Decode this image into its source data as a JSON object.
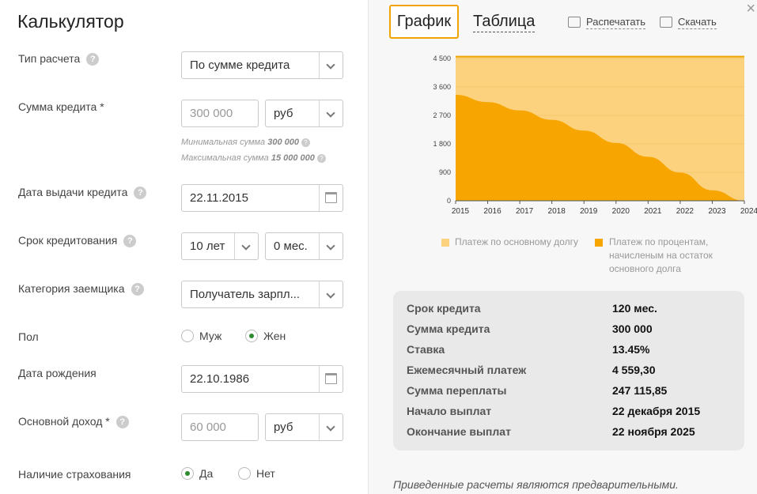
{
  "left": {
    "title": "Калькулятор",
    "calc_type": {
      "label": "Тип расчета",
      "value": "По сумме кредита"
    },
    "loan_amount": {
      "label": "Сумма кредита *",
      "placeholder": "300 000",
      "currency": "руб",
      "min_hint_prefix": "Минимальная сумма",
      "min_value": "300 000",
      "max_hint_prefix": "Максимальная сумма",
      "max_value": "15 000 000"
    },
    "issue_date": {
      "label": "Дата выдачи кредита",
      "value": "22.11.2015"
    },
    "term": {
      "label": "Срок кредитования",
      "years": "10 лет",
      "months": "0 мес."
    },
    "borrower_category": {
      "label": "Категория заемщика",
      "value": "Получатель зарпл..."
    },
    "gender": {
      "label": "Пол",
      "male": "Муж",
      "female": "Жен",
      "selected": "female"
    },
    "birth_date": {
      "label": "Дата рождения",
      "value": "22.10.1986"
    },
    "income": {
      "label": "Основной доход *",
      "placeholder": "60 000",
      "currency": "руб"
    },
    "insurance": {
      "label": "Наличие страхования",
      "yes": "Да",
      "no": "Нет",
      "selected": "yes"
    }
  },
  "right": {
    "tabs": [
      "График",
      "Таблица"
    ],
    "print_label": "Распечатать",
    "download_label": "Скачать",
    "close_symbol": "×",
    "legend": {
      "principal": "Платеж по основному долгу",
      "interest_l1": "Платеж по процентам,",
      "interest_l2": "начисленым на остаток",
      "interest_l3": "основного долга"
    },
    "summary": [
      {
        "label": "Срок кредита",
        "value": "120 мес."
      },
      {
        "label": "Сумма кредита",
        "value": "300 000"
      },
      {
        "label": "Ставка",
        "value": "13.45%"
      },
      {
        "label": "Ежемесячный платеж",
        "value": "4 559,30"
      },
      {
        "label": "Сумма переплаты",
        "value": "247 115,85"
      },
      {
        "label": "Начало выплат",
        "value": "22 декабря 2015"
      },
      {
        "label": "Окончание выплат",
        "value": "22 ноября 2025"
      }
    ],
    "note": "Приведенные расчеты являются предварительными."
  },
  "colors": {
    "principal": "#fcd27e",
    "interest": "#f7a500",
    "accent": "#f0a400"
  },
  "chart_data": {
    "type": "area",
    "x": [
      "2015",
      "2016",
      "2017",
      "2018",
      "2019",
      "2020",
      "2021",
      "2022",
      "2023",
      "2024"
    ],
    "yticks": [
      "4 500",
      "3 600",
      "2 700",
      "1 800",
      "900",
      "0"
    ],
    "ylim": [
      0,
      4500
    ],
    "series": [
      {
        "name": "Платеж по основному долгу",
        "values": [
          4559,
          4559,
          4559,
          4559,
          4559,
          4559,
          4559,
          4559,
          4559,
          4559
        ]
      },
      {
        "name": "Платеж по процентам, начисленым на остаток основного долга",
        "values": [
          3350,
          3120,
          2860,
          2560,
          2220,
          1830,
          1390,
          890,
          330,
          0
        ]
      }
    ]
  }
}
